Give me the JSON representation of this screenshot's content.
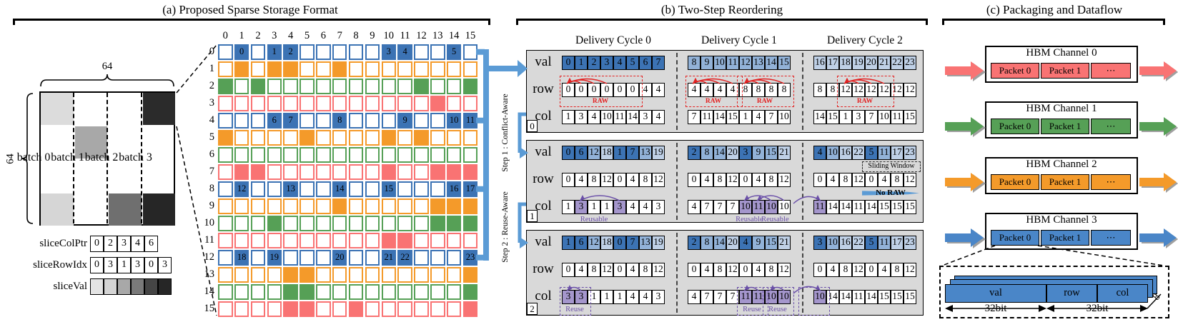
{
  "titles": {
    "a": "(a) Proposed Sparse Storage Format",
    "b": "(b) Two-Step Reordering",
    "c": "(c) Packaging and Dataflow"
  },
  "colors": {
    "blue_dark": "#3c73b4",
    "blue_med": "#92b2d8",
    "blue_light": "#bfd0e6",
    "orange": "#f49a2a",
    "green": "#56a056",
    "red": "#f97373",
    "purple": "#a496cc",
    "purple_stroke": "#6a4fa8",
    "raw_red": "#e32222",
    "connector_blue": "#5b9bd5",
    "panel_gray": "#d9d9d9",
    "row_palette": [
      "blue_dark",
      "orange",
      "green",
      "red"
    ],
    "val_shades": [
      "#3c73b4",
      "#92b2d8",
      "#bfd0e6"
    ]
  },
  "batch": {
    "dim_top": "64",
    "dim_left": "64",
    "labels": [
      "batch 0",
      "batch 1",
      "batch 2",
      "batch 3"
    ],
    "blocks": [
      {
        "col": 0,
        "row": 0,
        "shade": "#dcdcdc"
      },
      {
        "col": 0,
        "row": 3,
        "shade": "#d6d6d6"
      },
      {
        "col": 1,
        "row": 1,
        "shade": "#a8a8a8"
      },
      {
        "col": 2,
        "row": 3,
        "shade": "#6f6f6f"
      },
      {
        "col": 3,
        "row": 0,
        "shade": "#2b2b2b"
      },
      {
        "col": 3,
        "row": 3,
        "shade": "#262626"
      }
    ]
  },
  "slice_arrays": {
    "colptr": {
      "label": "sliceColPtr",
      "values": [
        "0",
        "2",
        "3",
        "4",
        "6"
      ]
    },
    "rowidx": {
      "label": "sliceRowIdx",
      "values": [
        "0",
        "3",
        "1",
        "3",
        "0",
        "3"
      ]
    },
    "val": {
      "label": "sliceVal",
      "shades": [
        "#e3e3e3",
        "#d4d4d4",
        "#a8a8a8",
        "#7a7a7a",
        "#454545",
        "#262626"
      ]
    }
  },
  "matrix": {
    "col_headers": [
      "0",
      "1",
      "2",
      "3",
      "4",
      "5",
      "6",
      "7",
      "8",
      "9",
      "10",
      "11",
      "12",
      "13",
      "14",
      "15"
    ],
    "row_headers": [
      "0",
      "1",
      "2",
      "3",
      "4",
      "5",
      "6",
      "7",
      "8",
      "9",
      "10",
      "11",
      "12",
      "13",
      "14",
      "15"
    ],
    "rows": [
      [
        "",
        "0",
        "",
        "1",
        "2",
        "",
        "",
        "",
        "",
        "",
        "3",
        "4",
        "",
        "",
        "5",
        ""
      ],
      [
        "",
        "F",
        "",
        "F",
        "F",
        "",
        "",
        "F",
        "",
        "",
        "",
        "",
        "",
        "",
        "",
        ""
      ],
      [
        "F",
        "",
        "F",
        "",
        "",
        "",
        "",
        "",
        "",
        "",
        "",
        "",
        "F",
        "",
        "",
        "F"
      ],
      [
        "",
        "",
        "",
        "",
        "",
        "",
        "",
        "",
        "",
        "",
        "",
        "",
        "",
        "F",
        "",
        ""
      ],
      [
        "",
        "",
        "",
        "6",
        "7",
        "",
        "",
        "8",
        "",
        "",
        "",
        "9",
        "",
        "",
        "10",
        "11"
      ],
      [
        "F",
        "",
        "",
        "",
        "",
        "F",
        "",
        "",
        "",
        "",
        "F",
        "",
        "F",
        "",
        "",
        ""
      ],
      [
        "",
        "",
        "",
        "",
        "",
        "",
        "",
        "",
        "",
        "",
        "",
        "",
        "",
        "",
        "",
        ""
      ],
      [
        "",
        "F",
        "F",
        "",
        "",
        "",
        "",
        "",
        "",
        "",
        "F",
        "",
        "",
        "F",
        "F",
        "F"
      ],
      [
        "",
        "12",
        "",
        "",
        "13",
        "",
        "",
        "14",
        "",
        "",
        "15",
        "",
        "",
        "",
        "16",
        "17"
      ],
      [
        "",
        "",
        "",
        "",
        "",
        "",
        "",
        "F",
        "",
        "",
        "",
        "",
        "",
        "F",
        "F",
        "F"
      ],
      [
        "",
        "",
        "",
        "F",
        "",
        "",
        "",
        "",
        "",
        "",
        "",
        "",
        "",
        "F",
        "F",
        "F"
      ],
      [
        "",
        "",
        "",
        "",
        "",
        "",
        "",
        "",
        "",
        "",
        "F",
        "F",
        "",
        "",
        "",
        ""
      ],
      [
        "",
        "18",
        "",
        "19",
        "",
        "",
        "",
        "20",
        "",
        "",
        "21",
        "22",
        "",
        "",
        "",
        "23"
      ],
      [
        "",
        "",
        "",
        "",
        "F",
        "F",
        "",
        "",
        "",
        "",
        "",
        "",
        "",
        "",
        "",
        "F"
      ],
      [
        "",
        "",
        "",
        "",
        "F",
        "F",
        "",
        "",
        "",
        "",
        "",
        "",
        "",
        "",
        "",
        "F"
      ],
      [
        "",
        "",
        "",
        "",
        "F",
        "F",
        "",
        "",
        "F",
        "",
        "",
        "",
        "",
        "",
        "",
        "F"
      ]
    ]
  },
  "reorder": {
    "cycle_headers": [
      "Delivery Cycle 0",
      "Delivery Cycle 1",
      "Delivery Cycle 2"
    ],
    "row_labels": [
      "val",
      "row",
      "col"
    ],
    "step1_label": "Step 1 : Conflict-Aware",
    "step2_label": "Step 2 : Reuse-Aware",
    "raw_label": "RAW",
    "reusable_label": "Reusable",
    "reuse_label": "Reuse",
    "sliding_window_label": "Sliding Window",
    "no_raw_label": "No RAW",
    "blocks": [
      {
        "tag": "0",
        "cycles": [
          {
            "val": [
              0,
              1,
              2,
              3,
              4,
              5,
              6,
              7
            ],
            "row": [
              0,
              0,
              0,
              0,
              0,
              0,
              4,
              4
            ],
            "col": [
              1,
              3,
              4,
              10,
              11,
              14,
              3,
              4
            ],
            "raw": [
              {
                "a": 0,
                "b": 5
              }
            ]
          },
          {
            "val": [
              8,
              9,
              10,
              11,
              12,
              13,
              14,
              15
            ],
            "row": [
              4,
              4,
              4,
              4,
              8,
              8,
              8,
              8
            ],
            "col": [
              7,
              11,
              14,
              15,
              1,
              4,
              7,
              10
            ],
            "raw": [
              {
                "a": 0,
                "b": 3
              },
              {
                "a": 4,
                "b": 7
              }
            ]
          },
          {
            "val": [
              16,
              17,
              18,
              19,
              20,
              21,
              22,
              23
            ],
            "row": [
              8,
              8,
              12,
              12,
              12,
              12,
              12,
              12
            ],
            "col": [
              14,
              15,
              1,
              3,
              7,
              10,
              11,
              15
            ],
            "raw": [
              {
                "a": 2,
                "b": 5
              }
            ]
          }
        ]
      },
      {
        "tag": "1",
        "cycles": [
          {
            "val": [
              0,
              6,
              12,
              18,
              1,
              7,
              13,
              19
            ],
            "row": [
              0,
              4,
              8,
              12,
              0,
              4,
              8,
              12
            ],
            "col": [
              1,
              3,
              1,
              1,
              3,
              4,
              4,
              3
            ],
            "hl": [
              1,
              4
            ],
            "arcs": [
              {
                "a": 4,
                "b": 1
              }
            ],
            "labels": [
              {
                "text": "Reusable",
                "at": 2.5
              }
            ]
          },
          {
            "val": [
              2,
              8,
              14,
              20,
              3,
              9,
              15,
              21
            ],
            "row": [
              0,
              4,
              8,
              12,
              0,
              4,
              8,
              12
            ],
            "col": [
              4,
              7,
              7,
              7,
              10,
              11,
              10,
              10
            ],
            "hl": [
              4,
              5,
              6
            ],
            "arcs": [
              {
                "a": 6,
                "b": 4
              },
              {
                "a": 7,
                "b": 5
              }
            ],
            "labels": [
              {
                "text": "Reusable",
                "at": 4.8
              },
              {
                "text": "Reusable",
                "at": 6.8
              }
            ]
          },
          {
            "val": [
              4,
              10,
              16,
              22,
              5,
              11,
              17,
              23
            ],
            "row": [
              0,
              4,
              8,
              12,
              0,
              4,
              8,
              12
            ],
            "col": [
              11,
              14,
              14,
              11,
              14,
              15,
              15,
              15
            ],
            "hl": [
              0
            ],
            "arc_in": true,
            "sliding_window": "Sliding Window",
            "no_raw": "No RAW"
          }
        ]
      },
      {
        "tag": "2",
        "cycles": [
          {
            "val": [
              1,
              6,
              12,
              18,
              0,
              7,
              13,
              19
            ],
            "row": [
              0,
              4,
              8,
              12,
              0,
              4,
              8,
              12
            ],
            "col": [
              3,
              3,
              1,
              1,
              1,
              4,
              4,
              3
            ],
            "hl": [
              0,
              1
            ],
            "arcs": [
              {
                "a": 1,
                "b": 0
              }
            ],
            "reuse_boxes": [
              {
                "a": 0,
                "b": 1,
                "label": "Reuse"
              }
            ]
          },
          {
            "val": [
              2,
              8,
              14,
              20,
              4,
              9,
              15,
              21
            ],
            "row": [
              0,
              4,
              8,
              12,
              0,
              4,
              8,
              12
            ],
            "col": [
              4,
              7,
              7,
              7,
              11,
              11,
              10,
              10
            ],
            "hl": [
              4,
              5,
              6,
              7
            ],
            "arcs": [
              {
                "a": 5,
                "b": 4
              },
              {
                "a": 7,
                "b": 6
              }
            ],
            "reuse_boxes": [
              {
                "a": 4,
                "b": 5,
                "label": "Reuse"
              },
              {
                "a": 6,
                "b": 7,
                "label": "Reuse"
              }
            ]
          },
          {
            "val": [
              3,
              10,
              16,
              22,
              5,
              11,
              17,
              23
            ],
            "row": [
              0,
              4,
              8,
              12,
              0,
              4,
              8,
              12
            ],
            "col": [
              10,
              14,
              14,
              11,
              14,
              15,
              15,
              15
            ],
            "hl": [
              0
            ],
            "arc_in": true,
            "reuse_boxes": [
              {
                "a": -1,
                "b": 0,
                "label": ""
              }
            ]
          }
        ]
      }
    ]
  },
  "packaging": {
    "channels": [
      {
        "name": "HBM Channel 0",
        "color": "#f97373",
        "packets": [
          "Packet 0",
          "Packet 1",
          "⋯"
        ]
      },
      {
        "name": "HBM Channel 1",
        "color": "#56a056",
        "packets": [
          "Packet 0",
          "Packet 1",
          "⋯"
        ]
      },
      {
        "name": "HBM Channel 2",
        "color": "#f49a2a",
        "packets": [
          "Packet 0",
          "Packet 1",
          "⋯"
        ]
      },
      {
        "name": "HBM Channel 3",
        "color": "#4a86c8",
        "packets": [
          "Packet 0",
          "Packet 1",
          "⋯"
        ]
      }
    ],
    "packet_detail": {
      "fields": [
        "val",
        "row",
        "col"
      ],
      "width_labels": [
        "32bit",
        "32bit"
      ],
      "depth": "8"
    }
  }
}
